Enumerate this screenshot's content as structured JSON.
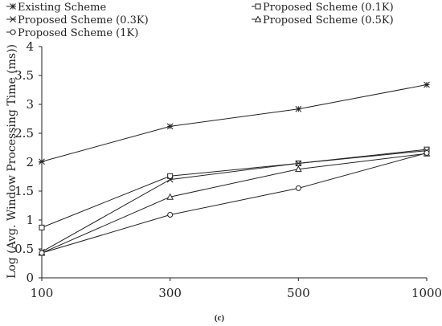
{
  "chart_data": {
    "type": "line",
    "x": [
      100,
      300,
      500,
      1000
    ],
    "ylabel": "Log (Avg. Window Processing Time (ms))",
    "xlabel": "",
    "ylim": [
      0,
      4
    ],
    "yticks": [
      "0",
      "0.5",
      "1",
      "1.5",
      "2",
      "2.5",
      "3",
      "3.5",
      "4"
    ],
    "xticks": [
      "100",
      "300",
      "500",
      "1000"
    ],
    "caption": "(c)",
    "grid": false,
    "legend_position": "top",
    "series": [
      {
        "name": "Existing Scheme",
        "marker": "asterisk",
        "values": [
          2.01,
          2.62,
          2.92,
          3.34
        ]
      },
      {
        "name": "Proposed Scheme (0.1K)",
        "marker": "square",
        "values": [
          0.87,
          1.76,
          1.98,
          2.22
        ]
      },
      {
        "name": "Proposed Scheme (0.3K)",
        "marker": "x",
        "values": [
          0.45,
          1.7,
          1.98,
          2.2
        ]
      },
      {
        "name": "Proposed Scheme (0.5K)",
        "marker": "triangle",
        "values": [
          0.43,
          1.4,
          1.88,
          2.15
        ]
      },
      {
        "name": "Proposed Scheme (1K)",
        "marker": "circle",
        "values": [
          0.43,
          1.09,
          1.55,
          2.16
        ]
      }
    ]
  }
}
